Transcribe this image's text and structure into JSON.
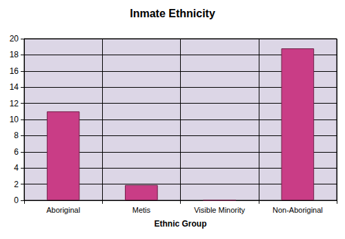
{
  "chart_data": {
    "type": "bar",
    "title": "Inmate Ethnicity",
    "x_label": "Ethnic Group",
    "categories": [
      "Aboriginal",
      "Metis",
      "Visible Minority",
      "Non-Aboriginal"
    ],
    "values": [
      11,
      1.9,
      0,
      18.8
    ],
    "color": "#c93d86",
    "ylim": [
      0,
      20
    ],
    "yticks": [
      0,
      2,
      4,
      6,
      8,
      10,
      12,
      14,
      16,
      18,
      20
    ],
    "grid": true
  }
}
